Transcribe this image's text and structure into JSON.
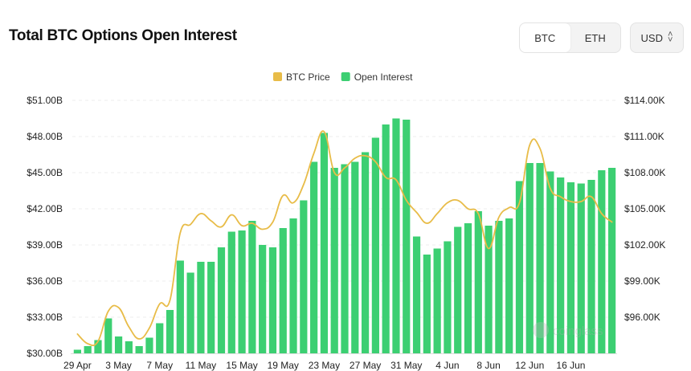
{
  "header": {
    "title": "Total BTC Options Open Interest",
    "asset_options": [
      "BTC",
      "ETH"
    ],
    "asset_selected": "BTC",
    "currency": "USD"
  },
  "watermark": "coinglass",
  "chart_data": {
    "type": "bar",
    "legend": [
      {
        "name": "BTC Price",
        "color": "#e8bc48",
        "marker": "square"
      },
      {
        "name": "Open Interest",
        "color": "#3ccf72",
        "marker": "square"
      }
    ],
    "legend_position": "top-center",
    "x_tick_labels": [
      "29 Apr",
      "3 May",
      "7 May",
      "11 May",
      "15 May",
      "19 May",
      "23 May",
      "27 May",
      "31 May",
      "4 Jun",
      "8 Jun",
      "12 Jun",
      "16 Jun"
    ],
    "x_tick_every": 4,
    "y_left": {
      "ticks": [
        "$30.00B",
        "$33.00B",
        "$36.00B",
        "$39.00B",
        "$42.00B",
        "$45.00B",
        "$48.00B",
        "$51.00B"
      ],
      "tick_values": [
        30,
        33,
        36,
        39,
        42,
        45,
        48,
        51
      ],
      "range": [
        30,
        51
      ]
    },
    "y_right": {
      "ticks": [
        "$96.00K",
        "$99.00K",
        "$102.00K",
        "$105.00K",
        "$108.00K",
        "$111.00K",
        "$114.00K"
      ],
      "tick_values": [
        96,
        99,
        102,
        105,
        108,
        111,
        114
      ],
      "range": [
        93,
        114
      ]
    },
    "grid": true,
    "series": [
      {
        "name": "Open Interest",
        "kind": "bar",
        "color": "#3ccf72",
        "values": [
          30.3,
          30.6,
          31.1,
          32.9,
          31.4,
          31.0,
          30.6,
          31.3,
          32.5,
          33.6,
          37.7,
          36.7,
          37.6,
          37.6,
          38.8,
          40.1,
          40.2,
          41.0,
          39.0,
          38.8,
          40.4,
          41.2,
          42.7,
          45.9,
          48.3,
          45.4,
          45.7,
          45.9,
          46.7,
          47.9,
          49.0,
          49.5,
          49.4,
          39.7,
          38.2,
          38.7,
          39.3,
          40.5,
          40.8,
          41.8,
          40.6,
          41.0,
          41.2,
          44.3,
          45.8,
          45.8,
          45.1,
          44.6,
          44.2,
          44.1,
          44.4,
          45.2,
          45.4
        ]
      },
      {
        "name": "BTC Price",
        "kind": "line",
        "color": "#e8bc48",
        "values": [
          94.6,
          93.8,
          94.0,
          96.5,
          96.8,
          95.2,
          94.2,
          95.1,
          97.1,
          97.4,
          103.0,
          103.7,
          104.6,
          104.0,
          103.5,
          104.5,
          103.6,
          103.8,
          103.3,
          103.9,
          106.1,
          105.5,
          107.0,
          109.6,
          111.4,
          108.0,
          108.4,
          109.2,
          109.4,
          108.9,
          107.6,
          107.4,
          105.7,
          104.7,
          103.8,
          104.6,
          105.5,
          105.7,
          105.0,
          104.6,
          101.7,
          104.3,
          105.1,
          105.5,
          110.3,
          110.0,
          106.7,
          106.0,
          105.6,
          105.6,
          106.0,
          104.6,
          103.9
        ]
      }
    ]
  }
}
